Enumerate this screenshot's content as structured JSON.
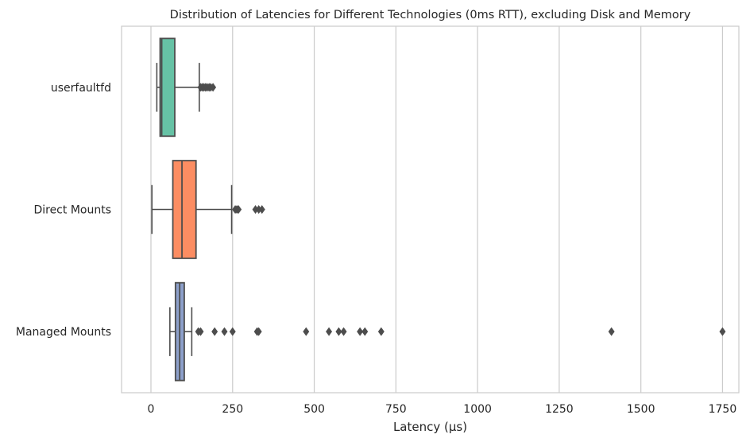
{
  "chart_data": {
    "type": "boxplot",
    "orientation": "horizontal",
    "title": "Distribution of Latencies for Different Technologies (0ms RTT), excluding Disk and Memory",
    "xlabel": "Latency (µs)",
    "ylabel": "",
    "xlim": [
      -90,
      1800
    ],
    "xticks": [
      0,
      250,
      500,
      750,
      1000,
      1250,
      1500,
      1750
    ],
    "grid": "vertical",
    "legend": "none",
    "categories": [
      "userfaultfd",
      "Direct Mounts",
      "Managed Mounts"
    ],
    "series": [
      {
        "category": "userfaultfd",
        "color": "#66c2a5",
        "whisker_low": 18,
        "q1": 28,
        "median": 33,
        "q3": 73,
        "whisker_high": 148,
        "outliers": [
          152,
          157,
          162,
          167,
          172,
          178,
          183,
          190
        ]
      },
      {
        "category": "Direct Mounts",
        "color": "#fc8d62",
        "whisker_low": 3,
        "q1": 67,
        "median": 95,
        "q3": 138,
        "whisker_high": 247,
        "outliers": [
          258,
          263,
          268,
          320,
          330,
          340
        ]
      },
      {
        "category": "Managed Mounts",
        "color": "#8da0cb",
        "whisker_low": 58,
        "q1": 75,
        "median": 88,
        "q3": 102,
        "whisker_high": 125,
        "outliers": [
          145,
          152,
          195,
          225,
          250,
          325,
          330,
          475,
          545,
          575,
          590,
          640,
          655,
          705,
          1410,
          1750
        ]
      }
    ]
  }
}
